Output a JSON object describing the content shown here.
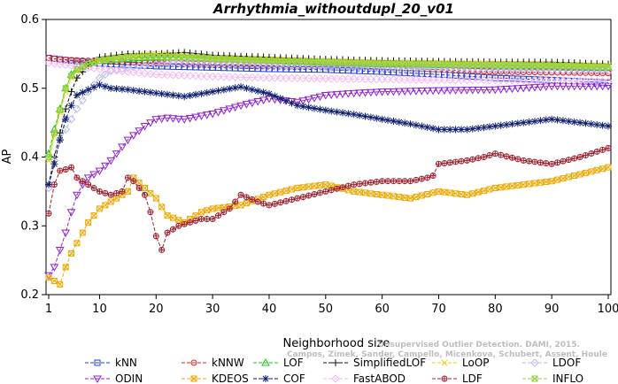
{
  "watermark": {
    "line1": "Unsupervised Outlier Detection. DAMI, 2015.",
    "line2": "Campos, Zimek, Sander, Campello, Micenkova, Schubert, Assent, Houle"
  },
  "chart_data": {
    "type": "line",
    "title": "Arrhythmia_withoutdupl_20_v01",
    "xlabel": "Neighborhood size",
    "ylabel": "AP",
    "xlim": [
      1,
      100
    ],
    "ylim": [
      0.2,
      0.6
    ],
    "xticks": [
      "1",
      "10",
      "20",
      "30",
      "40",
      "50",
      "60",
      "70",
      "80",
      "90",
      "100"
    ],
    "yticks": [
      "0.2",
      "0.3",
      "0.4",
      "0.5",
      "0.6"
    ],
    "grid": false,
    "legend_position": "bottom",
    "series": [
      {
        "name": "kNN",
        "color": "#1f3fd0",
        "marker": "square",
        "dash": "4,2",
        "x": [
          1,
          2,
          3,
          5,
          8,
          10,
          15,
          20,
          30,
          40,
          50,
          60,
          70,
          80,
          90,
          100
        ],
        "y": [
          0.544,
          0.543,
          0.542,
          0.54,
          0.538,
          0.536,
          0.534,
          0.532,
          0.53,
          0.528,
          0.527,
          0.524,
          0.52,
          0.515,
          0.512,
          0.508
        ]
      },
      {
        "name": "kNNW",
        "color": "#d62020",
        "marker": "circle",
        "dash": "4,2",
        "x": [
          1,
          2,
          3,
          5,
          8,
          10,
          15,
          20,
          30,
          40,
          50,
          60,
          70,
          80,
          90,
          100
        ],
        "y": [
          0.544,
          0.543,
          0.542,
          0.541,
          0.54,
          0.54,
          0.538,
          0.537,
          0.535,
          0.533,
          0.532,
          0.53,
          0.527,
          0.524,
          0.523,
          0.522
        ]
      },
      {
        "name": "LOF",
        "color": "#20c020",
        "marker": "triangle-up",
        "dash": "4,2",
        "x": [
          1,
          2,
          3,
          4,
          5,
          6,
          8,
          10,
          15,
          20,
          25,
          30,
          40,
          50,
          60,
          70,
          80,
          90,
          100
        ],
        "y": [
          0.405,
          0.44,
          0.47,
          0.5,
          0.52,
          0.528,
          0.535,
          0.54,
          0.543,
          0.545,
          0.545,
          0.543,
          0.54,
          0.537,
          0.535,
          0.534,
          0.533,
          0.532,
          0.53
        ]
      },
      {
        "name": "SimplifiedLOF",
        "color": "#111111",
        "marker": "plus",
        "dash": "4,2",
        "x": [
          1,
          2,
          3,
          4,
          5,
          6,
          8,
          10,
          15,
          20,
          25,
          30,
          40,
          50,
          60,
          70,
          80,
          90,
          100
        ],
        "y": [
          0.36,
          0.4,
          0.435,
          0.47,
          0.495,
          0.515,
          0.533,
          0.545,
          0.55,
          0.55,
          0.552,
          0.548,
          0.545,
          0.542,
          0.54,
          0.539,
          0.538,
          0.538,
          0.535
        ]
      },
      {
        "name": "LoOP",
        "color": "#e8d800",
        "marker": "x",
        "dash": "4,2",
        "x": [
          1,
          2,
          3,
          4,
          5,
          6,
          8,
          10,
          15,
          20,
          25,
          30,
          40,
          50,
          60,
          70,
          80,
          90,
          100
        ],
        "y": [
          0.395,
          0.43,
          0.465,
          0.495,
          0.515,
          0.525,
          0.535,
          0.542,
          0.547,
          0.55,
          0.548,
          0.545,
          0.542,
          0.54,
          0.538,
          0.537,
          0.536,
          0.535,
          0.533
        ]
      },
      {
        "name": "LDOF",
        "color": "#b8b8f0",
        "marker": "diamond",
        "dash": "4,2",
        "x": [
          1,
          2,
          3,
          4,
          5,
          6,
          8,
          10,
          12,
          15,
          20,
          25,
          30,
          40,
          50,
          60,
          70,
          80,
          90,
          100
        ],
        "y": [
          0.355,
          0.395,
          0.425,
          0.44,
          0.455,
          0.47,
          0.495,
          0.515,
          0.525,
          0.53,
          0.535,
          0.537,
          0.536,
          0.534,
          0.532,
          0.53,
          0.528,
          0.527,
          0.526,
          0.525
        ]
      },
      {
        "name": "ODIN",
        "color": "#9020d0",
        "marker": "triangle-down",
        "dash": "4,2",
        "x": [
          1,
          2,
          3,
          4,
          5,
          6,
          7,
          8,
          10,
          12,
          15,
          18,
          20,
          22,
          25,
          28,
          30,
          35,
          40,
          45,
          50,
          55,
          60,
          70,
          80,
          90,
          100
        ],
        "y": [
          0.228,
          0.24,
          0.265,
          0.29,
          0.32,
          0.345,
          0.36,
          0.37,
          0.38,
          0.395,
          0.425,
          0.445,
          0.455,
          0.457,
          0.455,
          0.46,
          0.463,
          0.475,
          0.485,
          0.48,
          0.49,
          0.493,
          0.495,
          0.497,
          0.498,
          0.503,
          0.503
        ]
      },
      {
        "name": "KDEOS",
        "color": "#f0a800",
        "marker": "square-x",
        "dash": "4,2",
        "x": [
          1,
          2,
          3,
          4,
          5,
          6,
          7,
          8,
          10,
          12,
          15,
          16,
          18,
          20,
          22,
          25,
          28,
          30,
          35,
          40,
          45,
          50,
          55,
          60,
          65,
          70,
          75,
          80,
          85,
          90,
          95,
          100
        ],
        "y": [
          0.225,
          0.22,
          0.215,
          0.24,
          0.26,
          0.275,
          0.29,
          0.305,
          0.325,
          0.335,
          0.35,
          0.37,
          0.355,
          0.34,
          0.315,
          0.305,
          0.32,
          0.325,
          0.33,
          0.345,
          0.355,
          0.36,
          0.35,
          0.345,
          0.34,
          0.35,
          0.345,
          0.355,
          0.36,
          0.365,
          0.375,
          0.385
        ]
      },
      {
        "name": "COF",
        "color": "#102070",
        "marker": "asterisk",
        "dash": "4,2",
        "x": [
          1,
          2,
          3,
          4,
          5,
          6,
          8,
          10,
          12,
          15,
          20,
          25,
          30,
          35,
          40,
          45,
          50,
          55,
          60,
          65,
          70,
          75,
          80,
          85,
          90,
          95,
          100
        ],
        "y": [
          0.36,
          0.39,
          0.425,
          0.455,
          0.475,
          0.49,
          0.498,
          0.505,
          0.5,
          0.498,
          0.493,
          0.488,
          0.495,
          0.502,
          0.492,
          0.475,
          0.468,
          0.462,
          0.455,
          0.448,
          0.44,
          0.44,
          0.445,
          0.45,
          0.455,
          0.45,
          0.445
        ]
      },
      {
        "name": "FastABOD",
        "color": "#f4b8f0",
        "marker": "diamond",
        "dash": "4,2",
        "x": [
          1,
          2,
          3,
          5,
          8,
          10,
          15,
          20,
          30,
          40,
          50,
          60,
          70,
          80,
          90,
          100
        ],
        "y": [
          0.537,
          0.536,
          0.535,
          0.533,
          0.53,
          0.528,
          0.524,
          0.52,
          0.517,
          0.515,
          0.514,
          0.513,
          0.512,
          0.512,
          0.511,
          0.51
        ]
      },
      {
        "name": "LDF",
        "color": "#a02030",
        "marker": "circle-plus",
        "dash": "4,2",
        "x": [
          1,
          2,
          3,
          4,
          5,
          6,
          8,
          10,
          12,
          14,
          15,
          16,
          18,
          19,
          20,
          21,
          22,
          24,
          26,
          28,
          30,
          33,
          35,
          38,
          40,
          45,
          50,
          55,
          60,
          65,
          68,
          69,
          70,
          75,
          78,
          80,
          85,
          90,
          95,
          100
        ],
        "y": [
          0.318,
          0.36,
          0.38,
          0.382,
          0.385,
          0.37,
          0.36,
          0.35,
          0.345,
          0.35,
          0.37,
          0.365,
          0.345,
          0.32,
          0.285,
          0.265,
          0.29,
          0.3,
          0.305,
          0.31,
          0.31,
          0.325,
          0.345,
          0.335,
          0.33,
          0.34,
          0.35,
          0.36,
          0.365,
          0.365,
          0.37,
          0.373,
          0.39,
          0.395,
          0.4,
          0.405,
          0.395,
          0.39,
          0.4,
          0.413
        ]
      },
      {
        "name": "INFLO",
        "color": "#90d040",
        "marker": "square-x",
        "dash": "4,2",
        "x": [
          1,
          2,
          3,
          4,
          5,
          6,
          8,
          10,
          15,
          20,
          25,
          30,
          40,
          50,
          60,
          70,
          80,
          90,
          100
        ],
        "y": [
          0.4,
          0.435,
          0.468,
          0.5,
          0.518,
          0.527,
          0.535,
          0.54,
          0.545,
          0.546,
          0.545,
          0.543,
          0.54,
          0.538,
          0.536,
          0.535,
          0.534,
          0.533,
          0.531
        ]
      }
    ]
  }
}
